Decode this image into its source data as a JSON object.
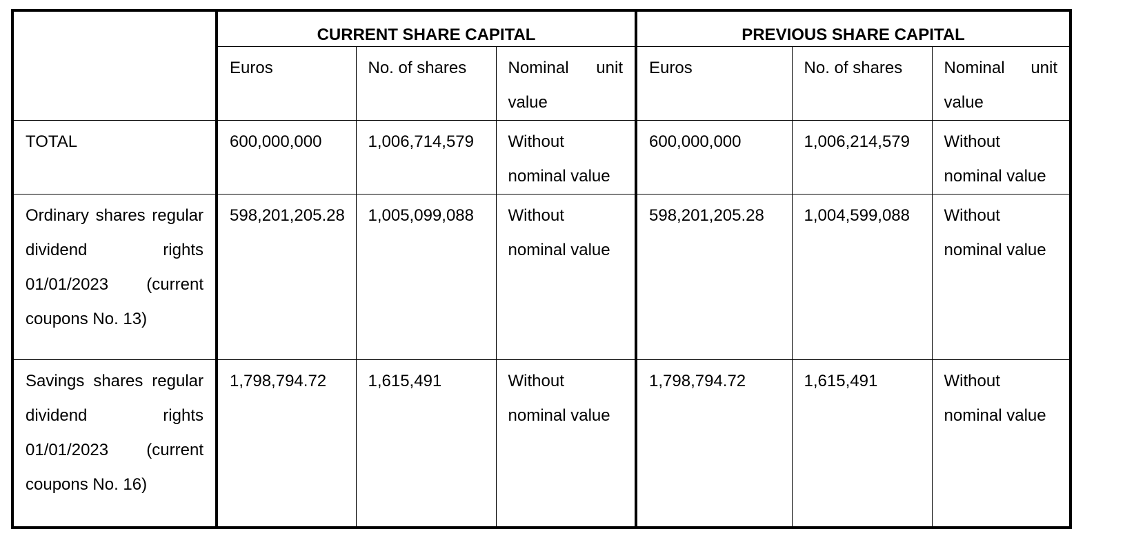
{
  "table": {
    "group_headers": [
      "CURRENT SHARE CAPITAL",
      "PREVIOUS SHARE CAPITAL"
    ],
    "sub_headers": [
      "Euros",
      "No. of shares",
      "Nominal unit value",
      "Euros",
      "No. of shares",
      "Nominal unit value"
    ],
    "rows": [
      {
        "label": "TOTAL",
        "cells": [
          "600,000,000",
          "1,006,714,579",
          "Without nominal value",
          "600,000,000",
          "1,006,214,579",
          "Without nominal value"
        ]
      },
      {
        "label": "Ordinary shares regular dividend rights 01/01/2023 (current coupons No. 13)",
        "cells": [
          "598,201,205.28",
          "1,005,099,088",
          "Without nominal value",
          "598,201,205.28",
          "1,004,599,088",
          "Without nominal value"
        ]
      },
      {
        "label": "Savings shares regular dividend rights 01/01/2023 (current coupons No. 16)",
        "cells": [
          "1,798,794.72",
          "1,615,491",
          "Without nominal value",
          "1,798,794.72",
          "1,615,491",
          "Without nominal value"
        ]
      }
    ]
  }
}
